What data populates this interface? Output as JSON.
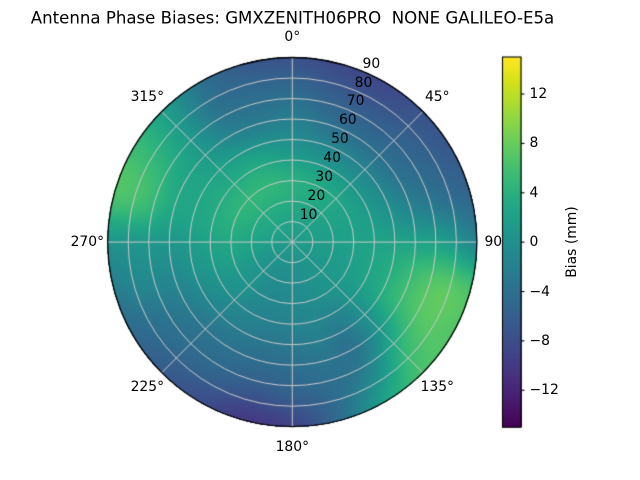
{
  "title": "Antenna Phase Biases: GMXZENITH06PRO  NONE GALILEO-E5a",
  "chart_data": {
    "type": "heatmap",
    "projection": "polar",
    "title": "Antenna Phase Biases: GMXZENITH06PRO  NONE GALILEO-E5a",
    "angular_ticks": [
      {
        "angle_deg": 0,
        "label": "0°"
      },
      {
        "angle_deg": 45,
        "label": "45°"
      },
      {
        "angle_deg": 90,
        "label": "90"
      },
      {
        "angle_deg": 135,
        "label": "135°"
      },
      {
        "angle_deg": 180,
        "label": "180°"
      },
      {
        "angle_deg": 225,
        "label": "225°"
      },
      {
        "angle_deg": 270,
        "label": "270°"
      },
      {
        "angle_deg": 315,
        "label": "315°"
      }
    ],
    "radial_ticks": [
      {
        "value": 10,
        "label": "10"
      },
      {
        "value": 20,
        "label": "20"
      },
      {
        "value": 30,
        "label": "30"
      },
      {
        "value": 40,
        "label": "40"
      },
      {
        "value": 50,
        "label": "50"
      },
      {
        "value": 60,
        "label": "60"
      },
      {
        "value": 70,
        "label": "70"
      },
      {
        "value": 80,
        "label": "80"
      },
      {
        "value": 90,
        "label": "90"
      }
    ],
    "radial_range": [
      0,
      90
    ],
    "grid_on": true,
    "colorbar": {
      "label": "Bias (mm)",
      "ticks": [
        {
          "value": 12,
          "label": "12"
        },
        {
          "value": 8,
          "label": "8"
        },
        {
          "value": 4,
          "label": "4"
        },
        {
          "value": 0,
          "label": "0"
        },
        {
          "value": -4,
          "label": "−4"
        },
        {
          "value": -8,
          "label": "−8"
        },
        {
          "value": -12,
          "label": "−12"
        }
      ],
      "vmin": -15,
      "vmax": 15,
      "colormap": "viridis",
      "position": "right"
    },
    "grid": {
      "azimuth_deg": [
        0,
        15,
        30,
        45,
        60,
        75,
        90,
        105,
        120,
        135,
        150,
        165,
        180,
        195,
        210,
        225,
        240,
        255,
        270,
        285,
        300,
        315,
        330,
        345
      ],
      "zenith_deg": [
        0,
        15,
        30,
        45,
        60,
        75,
        90
      ],
      "bias_mm": [
        [
          1.3,
          1.3,
          1.3,
          1.3,
          1.3,
          1.3,
          1.3,
          1.3,
          1.3,
          1.3,
          1.3,
          1.3,
          1.3,
          1.3,
          1.3,
          1.3,
          1.3,
          1.3,
          1.3,
          1.3,
          1.3,
          1.3,
          1.3,
          1.3
        ],
        [
          2.8,
          2.6,
          2.4,
          2.2,
          2.0,
          1.8,
          1.5,
          1.3,
          1.1,
          0.8,
          0.4,
          0.0,
          -0.2,
          -0.3,
          -0.1,
          0.3,
          0.8,
          1.4,
          2.0,
          2.5,
          2.9,
          3.1,
          3.1,
          3.0
        ],
        [
          3.8,
          3.4,
          2.9,
          2.6,
          2.2,
          2.0,
          2.0,
          1.8,
          1.4,
          0.8,
          0.0,
          -0.6,
          -1.0,
          -1.2,
          -0.8,
          0.2,
          1.0,
          2.0,
          3.0,
          3.8,
          4.4,
          4.6,
          4.6,
          4.4
        ],
        [
          0.6,
          0.0,
          -0.4,
          -0.4,
          0.0,
          1.0,
          2.2,
          3.0,
          2.6,
          0.2,
          -2.2,
          -1.8,
          -2.4,
          -2.6,
          -2.0,
          -1.2,
          -0.2,
          0.9,
          1.8,
          2.8,
          3.0,
          2.6,
          2.4,
          1.6
        ],
        [
          -2.2,
          -3.6,
          -4.2,
          -4.0,
          -3.4,
          -1.4,
          2.2,
          5.2,
          5.2,
          0.8,
          -3.6,
          -3.4,
          -4.2,
          -4.4,
          -3.8,
          -3.4,
          -2.4,
          -0.8,
          0.8,
          2.8,
          2.6,
          1.2,
          -1.6,
          -2.6
        ],
        [
          -4.9,
          -6.2,
          -6.6,
          -6.0,
          -5.2,
          -3.6,
          1.5,
          7.0,
          7.2,
          4.4,
          -1.5,
          -4.5,
          -6.0,
          -6.8,
          -5.6,
          -4.8,
          -3.6,
          -1.0,
          1.0,
          5.6,
          4.6,
          1.2,
          -3.5,
          -4.6
        ],
        [
          -7.4,
          -8.3,
          -8.5,
          -7.4,
          -6.8,
          -5.2,
          -1.5,
          6.3,
          6.8,
          6.2,
          2.0,
          -4.5,
          -9.0,
          -10.0,
          -8.0,
          -6.6,
          -4.8,
          -2.4,
          0.5,
          6.6,
          5.6,
          2.0,
          -3.8,
          -6.6
        ]
      ]
    },
    "style": {
      "grid_color": "#c9c9c9",
      "outline_color": "#000000",
      "background": "#ffffff"
    }
  }
}
